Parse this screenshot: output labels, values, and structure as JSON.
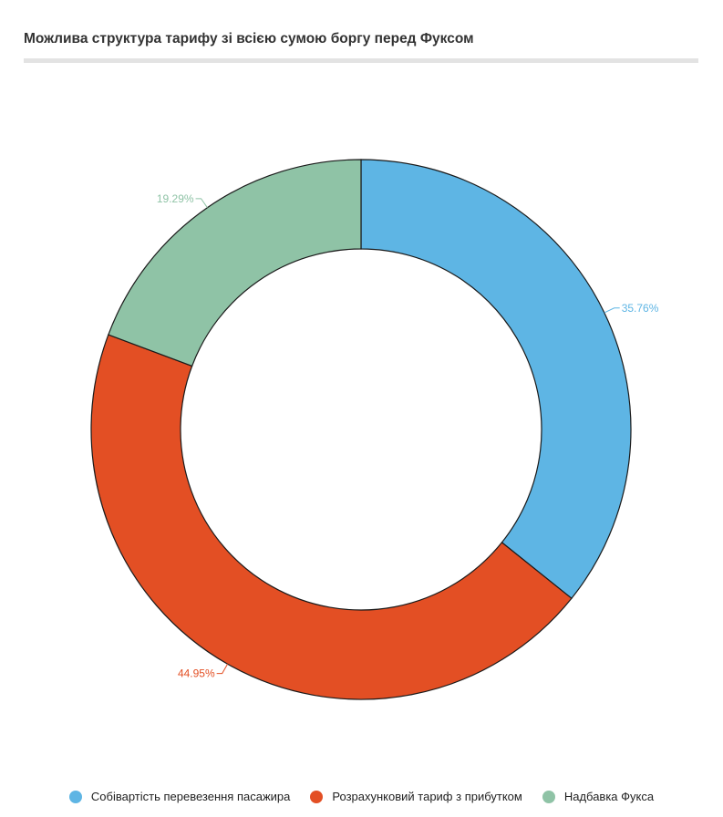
{
  "title": "Можлива структура тарифу зі всією сумою боргу перед Фуксом",
  "chart_data": {
    "type": "pie",
    "donut": true,
    "title": "Можлива структура тарифу зі всією сумою боргу перед Фуксом",
    "series": [
      {
        "name": "Собівартість перевезення пасажира",
        "value": 35.76,
        "label": "35.76%",
        "color": "#5eb5e4"
      },
      {
        "name": "Розрахунковий тариф з прибутком",
        "value": 44.95,
        "label": "44.95%",
        "color": "#e34f24"
      },
      {
        "name": "Надбавка Фукса",
        "value": 19.29,
        "label": "19.29%",
        "color": "#8fc3a6"
      }
    ],
    "legend": "bottom"
  }
}
